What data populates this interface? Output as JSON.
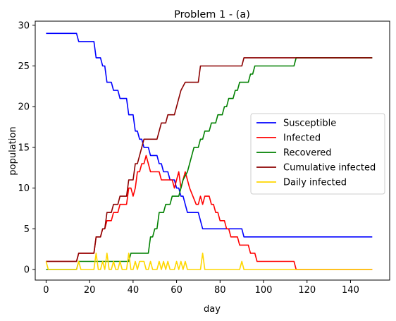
{
  "chart_data": {
    "type": "line",
    "title": "Problem 1 - (a)",
    "xlabel": "day",
    "ylabel": "population",
    "xlim": [
      -5,
      158
    ],
    "ylim": [
      -1.3,
      30.5
    ],
    "xticks": [
      0,
      20,
      40,
      60,
      80,
      100,
      120,
      140
    ],
    "yticks": [
      0,
      5,
      10,
      15,
      20,
      25,
      30
    ],
    "grid": false,
    "legend_position": "center-right",
    "series": [
      {
        "name": "Susceptible",
        "color": "#0000ff",
        "points": [
          [
            0,
            29
          ],
          [
            14,
            29
          ],
          [
            15,
            28
          ],
          [
            22,
            28
          ],
          [
            23,
            26
          ],
          [
            25,
            26
          ],
          [
            26,
            25
          ],
          [
            27,
            25
          ],
          [
            28,
            23
          ],
          [
            30,
            23
          ],
          [
            31,
            22
          ],
          [
            33,
            22
          ],
          [
            34,
            21
          ],
          [
            37,
            21
          ],
          [
            38,
            19
          ],
          [
            40,
            19
          ],
          [
            41,
            17
          ],
          [
            42,
            17
          ],
          [
            43,
            16
          ],
          [
            44,
            16
          ],
          [
            45,
            15
          ],
          [
            47,
            15
          ],
          [
            48,
            14
          ],
          [
            51,
            14
          ],
          [
            52,
            13
          ],
          [
            53,
            13
          ],
          [
            54,
            12
          ],
          [
            56,
            12
          ],
          [
            57,
            11
          ],
          [
            59,
            11
          ],
          [
            60,
            10
          ],
          [
            61,
            10
          ],
          [
            62,
            9
          ],
          [
            63,
            9
          ],
          [
            64,
            8
          ],
          [
            65,
            7
          ],
          [
            70,
            7
          ],
          [
            72,
            5
          ],
          [
            90,
            5
          ],
          [
            91,
            4
          ],
          [
            150,
            4
          ]
        ]
      },
      {
        "name": "Infected",
        "color": "#ff0000",
        "points": [
          [
            0,
            1
          ],
          [
            14,
            1
          ],
          [
            15,
            2
          ],
          [
            22,
            2
          ],
          [
            23,
            4
          ],
          [
            25,
            4
          ],
          [
            26,
            5
          ],
          [
            27,
            5
          ],
          [
            28,
            6
          ],
          [
            30,
            6
          ],
          [
            31,
            7
          ],
          [
            33,
            7
          ],
          [
            34,
            8
          ],
          [
            37,
            8
          ],
          [
            38,
            10
          ],
          [
            39,
            10
          ],
          [
            40,
            9
          ],
          [
            41,
            10
          ],
          [
            42,
            12
          ],
          [
            43,
            12
          ],
          [
            44,
            13
          ],
          [
            45,
            13
          ],
          [
            46,
            14
          ],
          [
            47,
            13
          ],
          [
            48,
            12
          ],
          [
            51,
            12
          ],
          [
            52,
            12
          ],
          [
            53,
            11
          ],
          [
            55,
            11
          ],
          [
            58,
            11
          ],
          [
            59,
            10
          ],
          [
            60,
            11
          ],
          [
            61,
            12
          ],
          [
            62,
            10
          ],
          [
            63,
            11
          ],
          [
            64,
            12
          ],
          [
            65,
            11
          ],
          [
            66,
            10
          ],
          [
            69,
            8
          ],
          [
            70,
            8
          ],
          [
            71,
            9
          ],
          [
            72,
            8
          ],
          [
            73,
            9
          ],
          [
            75,
            9
          ],
          [
            76,
            8
          ],
          [
            77,
            8
          ],
          [
            78,
            7
          ],
          [
            79,
            7
          ],
          [
            80,
            6
          ],
          [
            82,
            6
          ],
          [
            83,
            5
          ],
          [
            84,
            5
          ],
          [
            85,
            4
          ],
          [
            87,
            4
          ],
          [
            88,
            4
          ],
          [
            89,
            3
          ],
          [
            90,
            3
          ],
          [
            93,
            3
          ],
          [
            94,
            2
          ],
          [
            96,
            2
          ],
          [
            97,
            1
          ],
          [
            114,
            1
          ],
          [
            115,
            0
          ],
          [
            150,
            0
          ]
        ]
      },
      {
        "name": "Recovered",
        "color": "#008000",
        "points": [
          [
            0,
            0
          ],
          [
            14,
            0
          ],
          [
            15,
            1
          ],
          [
            38,
            1
          ],
          [
            39,
            2
          ],
          [
            47,
            2
          ],
          [
            48,
            4
          ],
          [
            49,
            4
          ],
          [
            50,
            5
          ],
          [
            51,
            5
          ],
          [
            52,
            7
          ],
          [
            54,
            7
          ],
          [
            55,
            8
          ],
          [
            57,
            8
          ],
          [
            58,
            9
          ],
          [
            61,
            9
          ],
          [
            62,
            10
          ],
          [
            63,
            11
          ],
          [
            65,
            12
          ],
          [
            66,
            13
          ],
          [
            67,
            14
          ],
          [
            68,
            15
          ],
          [
            70,
            15
          ],
          [
            71,
            16
          ],
          [
            72,
            16
          ],
          [
            73,
            17
          ],
          [
            75,
            17
          ],
          [
            76,
            18
          ],
          [
            78,
            18
          ],
          [
            79,
            19
          ],
          [
            81,
            19
          ],
          [
            82,
            20
          ],
          [
            83,
            20
          ],
          [
            84,
            21
          ],
          [
            86,
            21
          ],
          [
            87,
            22
          ],
          [
            88,
            22
          ],
          [
            89,
            23
          ],
          [
            93,
            23
          ],
          [
            94,
            24
          ],
          [
            95,
            24
          ],
          [
            96,
            25
          ],
          [
            114,
            25
          ],
          [
            115,
            26
          ],
          [
            150,
            26
          ]
        ]
      },
      {
        "name": "Cumulative infected",
        "color": "#8b0000",
        "points": [
          [
            0,
            1
          ],
          [
            14,
            1
          ],
          [
            15,
            2
          ],
          [
            22,
            2
          ],
          [
            23,
            4
          ],
          [
            25,
            4
          ],
          [
            26,
            5
          ],
          [
            27,
            5
          ],
          [
            28,
            7
          ],
          [
            30,
            7
          ],
          [
            31,
            8
          ],
          [
            33,
            8
          ],
          [
            34,
            9
          ],
          [
            37,
            9
          ],
          [
            38,
            11
          ],
          [
            40,
            11
          ],
          [
            41,
            13
          ],
          [
            42,
            13
          ],
          [
            43,
            14
          ],
          [
            44,
            15
          ],
          [
            45,
            16
          ],
          [
            47,
            16
          ],
          [
            48,
            16
          ],
          [
            51,
            16
          ],
          [
            52,
            17
          ],
          [
            53,
            18
          ],
          [
            55,
            18
          ],
          [
            56,
            19
          ],
          [
            59,
            19
          ],
          [
            60,
            20
          ],
          [
            61,
            21
          ],
          [
            62,
            22
          ],
          [
            64,
            23
          ],
          [
            70,
            23
          ],
          [
            71,
            25
          ],
          [
            90,
            25
          ],
          [
            91,
            26
          ],
          [
            150,
            26
          ]
        ]
      },
      {
        "name": "Daily infected",
        "color": "#ffd700",
        "points": [
          [
            0,
            1
          ],
          [
            1,
            0
          ],
          [
            14,
            0
          ],
          [
            15,
            1
          ],
          [
            16,
            0
          ],
          [
            22,
            0
          ],
          [
            23,
            2
          ],
          [
            24,
            0
          ],
          [
            25,
            0
          ],
          [
            26,
            1
          ],
          [
            27,
            0
          ],
          [
            28,
            2
          ],
          [
            29,
            0
          ],
          [
            30,
            0
          ],
          [
            31,
            1
          ],
          [
            32,
            0
          ],
          [
            33,
            0
          ],
          [
            34,
            1
          ],
          [
            35,
            0
          ],
          [
            37,
            0
          ],
          [
            38,
            2
          ],
          [
            39,
            0
          ],
          [
            40,
            0
          ],
          [
            41,
            1
          ],
          [
            42,
            0
          ],
          [
            43,
            1
          ],
          [
            44,
            1
          ],
          [
            45,
            1
          ],
          [
            46,
            0
          ],
          [
            47,
            0
          ],
          [
            48,
            1
          ],
          [
            49,
            0
          ],
          [
            51,
            0
          ],
          [
            52,
            1
          ],
          [
            53,
            0
          ],
          [
            54,
            1
          ],
          [
            55,
            0
          ],
          [
            56,
            1
          ],
          [
            57,
            0
          ],
          [
            59,
            0
          ],
          [
            60,
            1
          ],
          [
            61,
            0
          ],
          [
            62,
            1
          ],
          [
            63,
            0
          ],
          [
            64,
            1
          ],
          [
            65,
            0
          ],
          [
            71,
            0
          ],
          [
            72,
            2
          ],
          [
            73,
            0
          ],
          [
            89,
            0
          ],
          [
            90,
            1
          ],
          [
            91,
            0
          ],
          [
            150,
            0
          ]
        ]
      }
    ]
  }
}
